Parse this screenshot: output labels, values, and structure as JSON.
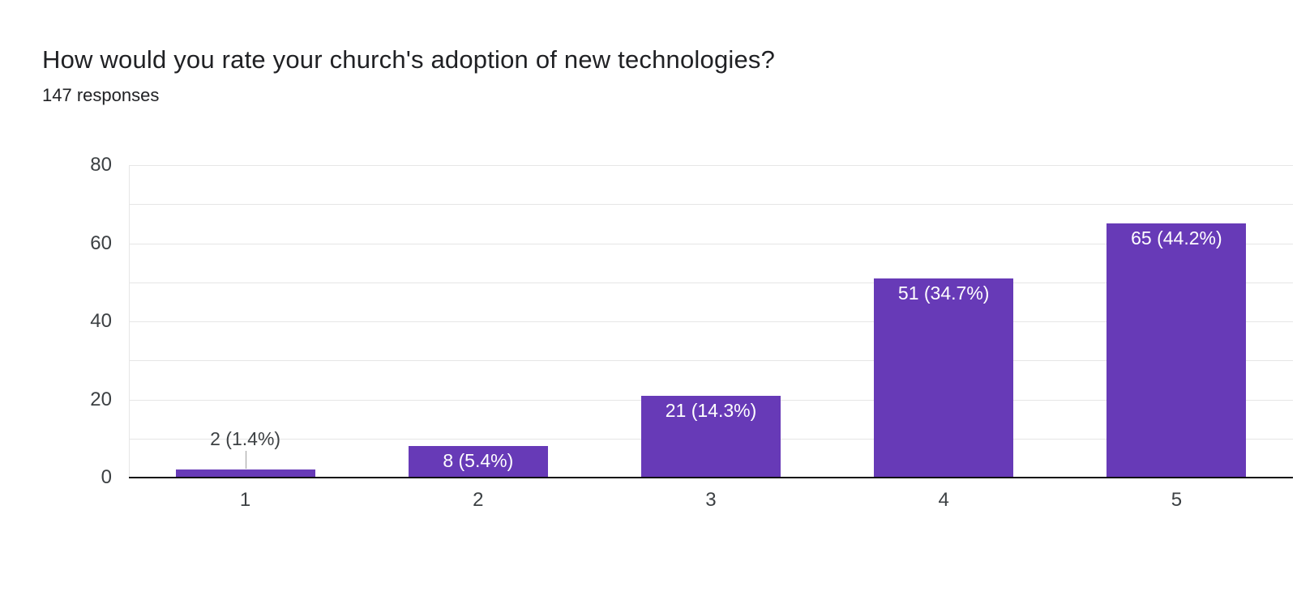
{
  "header": {
    "title": "How would you rate your church's adoption of new technologies?",
    "subtitle": "147 responses"
  },
  "chart_data": {
    "type": "bar",
    "title": "How would you rate your church's adoption of new technologies?",
    "subtitle": "147 responses",
    "total_responses": 147,
    "categories": [
      "1",
      "2",
      "3",
      "4",
      "5"
    ],
    "values": [
      2,
      8,
      21,
      51,
      65
    ],
    "percentages": [
      1.4,
      5.4,
      14.3,
      34.7,
      44.2
    ],
    "data_labels": [
      "2 (1.4%)",
      "8 (5.4%)",
      "21 (14.3%)",
      "51 (34.7%)",
      "65 (44.2%)"
    ],
    "xlabel": "",
    "ylabel": "",
    "ylim": [
      0,
      80
    ],
    "y_ticks": [
      0,
      20,
      40,
      60,
      80
    ],
    "grid_step": 10,
    "grid": "horizontal",
    "legend_position": "none"
  },
  "colors": {
    "bar": "#673ab7",
    "gridline": "#e6e6e6",
    "axis_line": "#111111",
    "tick_label": "#3c4043",
    "label_inside": "#ffffff",
    "label_outside": "#3c4043",
    "leader_line": "#9e9e9e",
    "background": "#ffffff"
  }
}
